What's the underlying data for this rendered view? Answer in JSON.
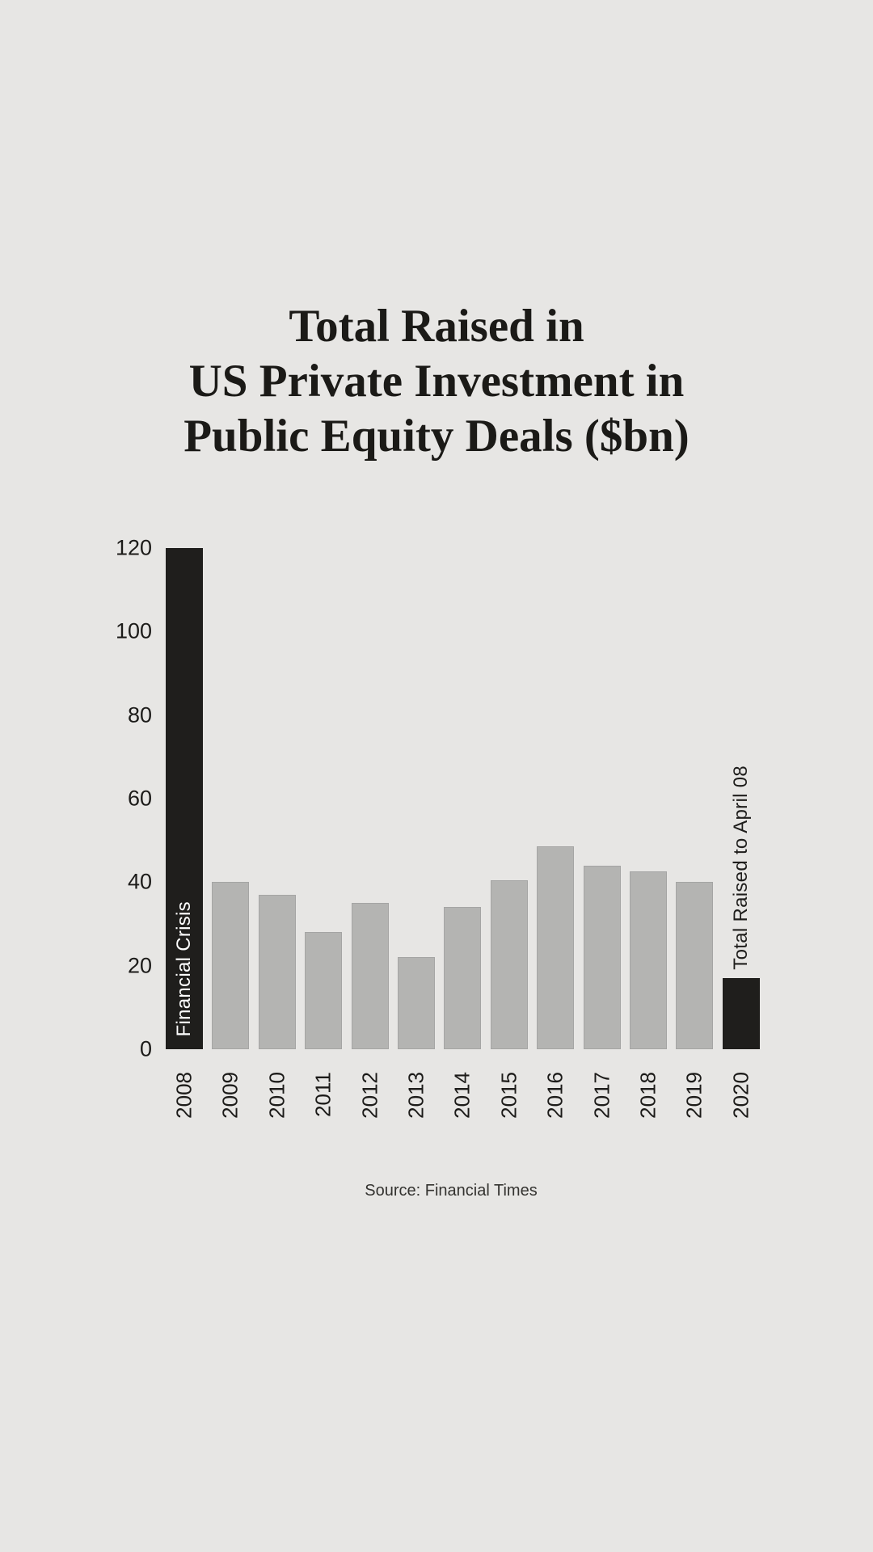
{
  "page": {
    "background_color": "#e7e6e4",
    "title_lines": [
      "Total Raised in",
      "US Private Investment in",
      "Public Equity Deals ($bn)"
    ],
    "source": "Source: Financial Times"
  },
  "chart_data": {
    "type": "bar",
    "title": "Total Raised in US Private Investment in Public Equity Deals ($bn)",
    "xlabel": "",
    "ylabel": "",
    "categories": [
      "2008",
      "2009",
      "2010",
      "2011",
      "2012",
      "2013",
      "2014",
      "2015",
      "2016",
      "2017",
      "2018",
      "2019",
      "2020"
    ],
    "values": [
      120,
      40,
      37,
      28,
      35,
      22,
      34,
      40.5,
      48.5,
      44,
      42.5,
      40,
      17
    ],
    "ylim": [
      0,
      120
    ],
    "yticks": [
      0,
      20,
      40,
      60,
      80,
      100,
      120
    ],
    "grid": false,
    "legend": "none",
    "x_tick_rotation": "vertical-bottom-to-top",
    "default_bar_color": "#b4b4b2",
    "highlight_bar_color": "#1f1e1c",
    "text_color": "#1c1b19",
    "bar_notes": {
      "2008": {
        "label": "Financial Crisis",
        "placement": "inside-bottom",
        "text_color": "#ffffff",
        "bar_color": "#1f1e1c",
        "clipped_at_ymax": true
      },
      "2020": {
        "label": "Total Raised to April 08",
        "placement": "above-bar",
        "text_color": "#1f1e1c",
        "bar_color": "#1f1e1c"
      }
    }
  }
}
